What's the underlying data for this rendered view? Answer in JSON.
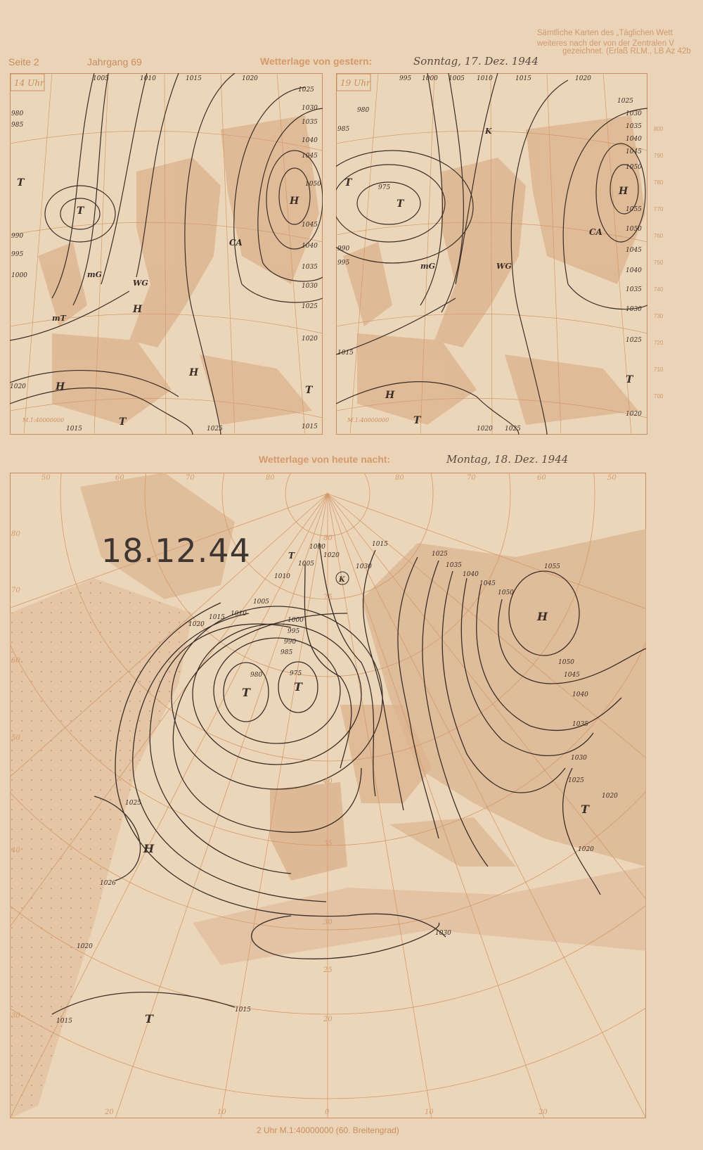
{
  "header": {
    "page": "Seite 2",
    "volume": "Jahrgang 69",
    "note_lines": [
      "Sämtliche Karten des „Täglichen Wett",
      "weiteres nach der von der Zentralen V",
      "gezeichnet. (Erlaß RLM., LB Az 42b"
    ],
    "yesterday_title": "Wetterlage von gestern:",
    "yesterday_date": "Sonntag, 17. Dez. 1944",
    "tonight_title": "Wetterlage von heute nacht:",
    "tonight_date": "Montag, 18. Dez. 1944"
  },
  "map_14": {
    "time": "14 Uhr",
    "scale": "M.1:40000000",
    "isobar_labels": [
      "1005",
      "1010",
      "1015",
      "1020",
      "1025",
      "1030",
      "1035",
      "1040",
      "1045",
      "1050",
      "1045",
      "1040",
      "1035",
      "1030",
      "1025",
      "1020",
      "1015",
      "1020",
      "1025",
      "1015",
      "980",
      "985",
      "990",
      "995",
      "1000"
    ],
    "pressure_systems": [
      "H",
      "T",
      "T",
      "H",
      "H",
      "H",
      "T",
      "T",
      "CA",
      "mG",
      "WG",
      "mT"
    ]
  },
  "map_19": {
    "time": "19 Uhr",
    "scale": "M.1:40000000",
    "isobar_labels": [
      "995",
      "1000",
      "1005",
      "1010",
      "1015",
      "1020",
      "1025",
      "1030",
      "1035",
      "1040",
      "1045",
      "1050",
      "1055",
      "1050",
      "1045",
      "1040",
      "1035",
      "1030",
      "1025",
      "1020",
      "980",
      "975",
      "985",
      "990",
      "995",
      "1015",
      "1020",
      "1025"
    ],
    "pressure_systems": [
      "H",
      "T",
      "T",
      "H",
      "T",
      "T",
      "K",
      "CA",
      "mG",
      "WG"
    ]
  },
  "map_main": {
    "stamp": "18.12.44",
    "scale_caption": "2 Uhr M.1:40000000 (60. Breitengrad)",
    "isobar_labels": [
      "1000",
      "1005",
      "1010",
      "1015",
      "1020",
      "1000",
      "995",
      "990",
      "985",
      "980",
      "975",
      "1005",
      "1010",
      "1015",
      "1020",
      "1025",
      "1030",
      "1035",
      "1040",
      "1045",
      "1050",
      "1055",
      "1050",
      "1045",
      "1040",
      "1035",
      "1030",
      "1025",
      "1020",
      "1025",
      "1026",
      "1020",
      "1015",
      "1015",
      "1020",
      "1030"
    ],
    "pressure_systems": [
      "T",
      "T",
      "T",
      "H",
      "H",
      "T",
      "T",
      "K"
    ],
    "lon_labels_top": [
      "50",
      "60",
      "70",
      "80",
      "0",
      "80",
      "70",
      "60",
      "50"
    ],
    "lon_labels_bottom": [
      "20",
      "10",
      "0",
      "10",
      "20"
    ],
    "lat_labels": [
      "80",
      "70",
      "60",
      "50",
      "40",
      "30"
    ],
    "circle_labels": [
      "80",
      "75",
      "40",
      "35",
      "30",
      "25",
      "20"
    ]
  },
  "right_scale": [
    "800",
    "790",
    "780",
    "770",
    "760",
    "750",
    "740",
    "730",
    "720",
    "710",
    "700"
  ],
  "colors": {
    "paper": "#ead3b6",
    "land": "#dcb48f",
    "grid": "#d29a6c",
    "isobar": "#3a2e28",
    "print": "#c98e5e"
  }
}
